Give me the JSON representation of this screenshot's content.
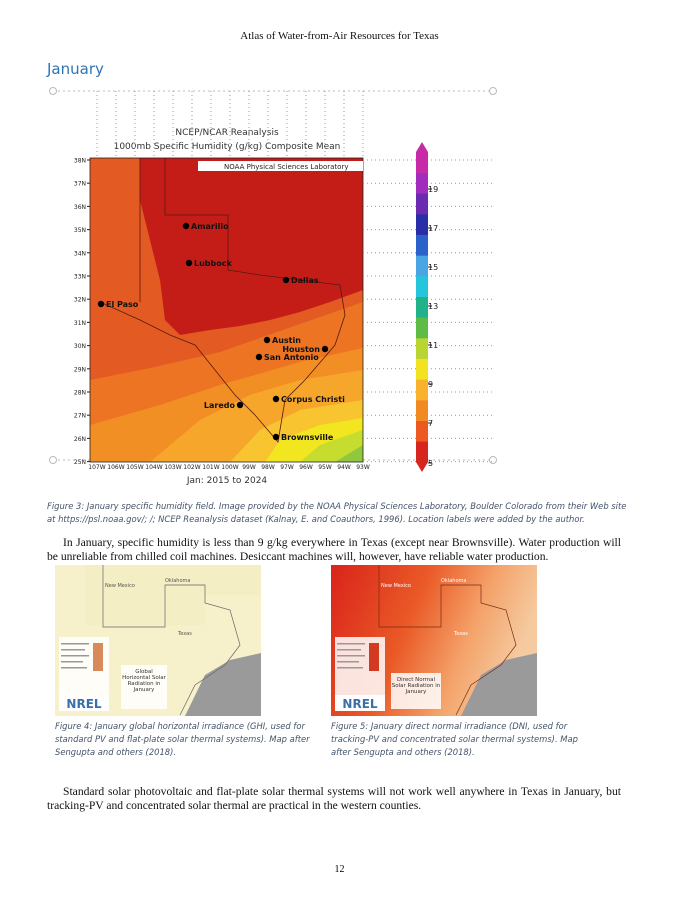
{
  "header": {
    "title": "Atlas of Water-from-Air Resources for Texas"
  },
  "section": {
    "heading": "January"
  },
  "figure3": {
    "map": {
      "title": "NCEP/NCAR Reanalysis",
      "subtitle": "1000mb Specific Humidity (g/kg) Composite Mean",
      "credit": "NOAA Physical Sciences Laboratory",
      "period": "Jan: 2015 to 2024",
      "lat_labels": [
        "38N",
        "37N",
        "36N",
        "35N",
        "34N",
        "33N",
        "32N",
        "31N",
        "30N",
        "29N",
        "28N",
        "27N",
        "26N",
        "25N"
      ],
      "lon_labels": [
        "107W",
        "106W",
        "105W",
        "104W",
        "103W",
        "102W",
        "101W",
        "100W",
        "99W",
        "98W",
        "97W",
        "96W",
        "95W",
        "94W",
        "93W"
      ],
      "cities": [
        "Amarillo",
        "Lubbock",
        "Dallas",
        "El Paso",
        "Austin",
        "Houston",
        "San Antonio",
        "Laredo",
        "Corpus Christi",
        "Brownsville"
      ],
      "colorbar_labels": [
        5,
        7,
        9,
        11,
        13,
        15,
        17,
        19
      ]
    },
    "caption": "Figure 3: January specific humidity field. Image provided by the NOAA Physical Sciences Laboratory, Boulder Colorado from their Web site at https://psl.noaa.gov/; /; NCEP Reanalysis dataset (Kalnay, E. and Coauthors, 1996). Location labels were added by the author."
  },
  "paragraph1": "In January, specific humidity is less than 9 g/kg everywhere in Texas (except near Brownsville). Water production will be unreliable from chilled coil machines. Desiccant machines will, however, have reliable water production.",
  "figure4": {
    "states": [
      "New Mexico",
      "Oklahoma",
      "Texas"
    ],
    "map_label": "Global Horizontal Solar Radiation in January",
    "logo": "NREL",
    "caption": "Figure 4: January global horizontal irradiance (GHI, used for standard PV and flat-plate solar thermal systems). Map after Sengupta and others (2018)."
  },
  "figure5": {
    "states": [
      "New Mexico",
      "Oklahoma",
      "Texas"
    ],
    "map_label": "Direct Normal Solar Radiation in January",
    "logo": "NREL",
    "caption": "Figure 5: January direct normal irradiance (DNI, used for tracking-PV and concentrated solar thermal systems). Map after Sengupta and others (2018)."
  },
  "paragraph2": "Standard solar photovoltaic and flat-plate solar thermal systems will not work well anywhere in Texas in January, but tracking-PV and concentrated solar thermal are practical in the western counties.",
  "footer": {
    "page_number": "12"
  }
}
